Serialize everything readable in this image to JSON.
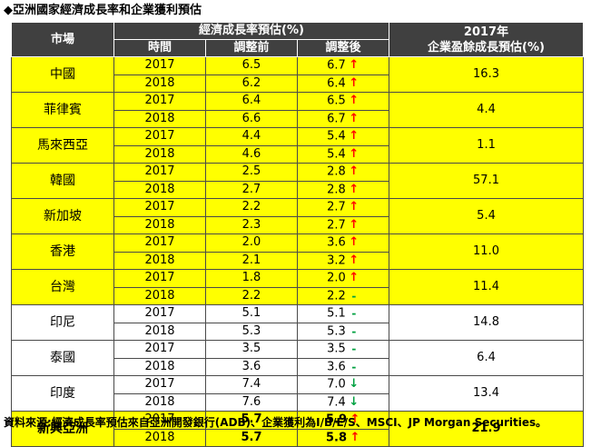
{
  "title": "◆亞洲國家經濟成長率和企業獲利預估",
  "header": {
    "market": "市場",
    "gdp_group": "經濟成長率預估(%)",
    "period": "時間",
    "before": "調整前",
    "after": "調整後",
    "earnings_line1": "2017年",
    "earnings_line2": "企業盈餘成長預估(%)"
  },
  "rows": [
    {
      "market": "中國",
      "earnings": "16.3",
      "highlight": "yellow",
      "data": [
        {
          "year": "2017",
          "before": "6.5",
          "after": "6.7",
          "trend": "up"
        },
        {
          "year": "2018",
          "before": "6.2",
          "after": "6.4",
          "trend": "up"
        }
      ]
    },
    {
      "market": "菲律賓",
      "earnings": "4.4",
      "highlight": "yellow",
      "data": [
        {
          "year": "2017",
          "before": "6.4",
          "after": "6.5",
          "trend": "up"
        },
        {
          "year": "2018",
          "before": "6.6",
          "after": "6.7",
          "trend": "up"
        }
      ]
    },
    {
      "market": "馬來西亞",
      "earnings": "1.1",
      "highlight": "yellow",
      "data": [
        {
          "year": "2017",
          "before": "4.4",
          "after": "5.4",
          "trend": "up"
        },
        {
          "year": "2018",
          "before": "4.6",
          "after": "5.4",
          "trend": "up"
        }
      ]
    },
    {
      "market": "韓國",
      "earnings": "57.1",
      "highlight": "yellow",
      "data": [
        {
          "year": "2017",
          "before": "2.5",
          "after": "2.8",
          "trend": "up"
        },
        {
          "year": "2018",
          "before": "2.7",
          "after": "2.8",
          "trend": "up"
        }
      ]
    },
    {
      "market": "新加坡",
      "earnings": "5.4",
      "highlight": "yellow",
      "data": [
        {
          "year": "2017",
          "before": "2.2",
          "after": "2.7",
          "trend": "up"
        },
        {
          "year": "2018",
          "before": "2.3",
          "after": "2.7",
          "trend": "up"
        }
      ]
    },
    {
      "market": "香港",
      "earnings": "11.0",
      "highlight": "yellow",
      "data": [
        {
          "year": "2017",
          "before": "2.0",
          "after": "3.6",
          "trend": "up"
        },
        {
          "year": "2018",
          "before": "2.1",
          "after": "3.2",
          "trend": "up"
        }
      ]
    },
    {
      "market": "台灣",
      "earnings": "11.4",
      "highlight": "yellow",
      "data": [
        {
          "year": "2017",
          "before": "1.8",
          "after": "2.0",
          "trend": "up"
        },
        {
          "year": "2018",
          "before": "2.2",
          "after": "2.2",
          "trend": "flat"
        }
      ]
    },
    {
      "market": "印尼",
      "earnings": "14.8",
      "highlight": "white",
      "data": [
        {
          "year": "2017",
          "before": "5.1",
          "after": "5.1",
          "trend": "flat"
        },
        {
          "year": "2018",
          "before": "5.3",
          "after": "5.3",
          "trend": "flat"
        }
      ]
    },
    {
      "market": "泰國",
      "earnings": "6.4",
      "highlight": "white",
      "data": [
        {
          "year": "2017",
          "before": "3.5",
          "after": "3.5",
          "trend": "flat"
        },
        {
          "year": "2018",
          "before": "3.6",
          "after": "3.6",
          "trend": "flat"
        }
      ]
    },
    {
      "market": "印度",
      "earnings": "13.4",
      "highlight": "white",
      "data": [
        {
          "year": "2017",
          "before": "7.4",
          "after": "7.0",
          "trend": "down"
        },
        {
          "year": "2018",
          "before": "7.6",
          "after": "7.4",
          "trend": "down"
        }
      ]
    },
    {
      "market": "新興亞洲",
      "earnings": "21.9",
      "highlight": "yellow",
      "bold": true,
      "data": [
        {
          "year": "2017",
          "before": "5.7",
          "after": "5.9",
          "trend": "up"
        },
        {
          "year": "2018",
          "before": "5.7",
          "after": "5.8",
          "trend": "up"
        }
      ]
    }
  ],
  "source": "資料來源:經濟成長率預估來自亞洲開發銀行(ADB)、企業獲利為I/B/E/S、MSCI、JP Morgan Securities。",
  "colors": {
    "header_bg": "#404040",
    "highlight": "#ffff00",
    "up_arrow": "#ff0000",
    "down_arrow": "#00a040",
    "flat_dash": "#00a040"
  },
  "icons": {
    "up": "up-arrow-icon",
    "down": "down-arrow-icon",
    "flat": "dash-icon"
  }
}
